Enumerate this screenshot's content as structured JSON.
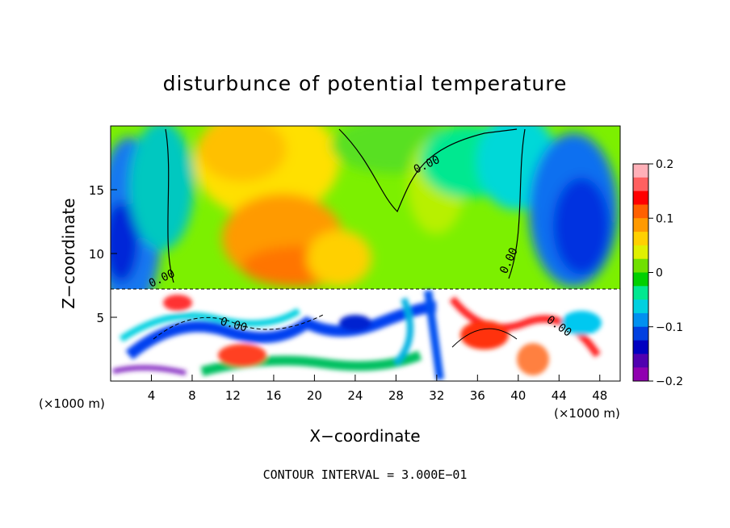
{
  "chart_data": {
    "type": "heatmap",
    "title": "disturbunce of potential temperature",
    "xlabel": "X−coordinate",
    "ylabel": "Z−coordinate",
    "x_unit": "(×1000 m)",
    "x_unit_right": "(×1000 m)",
    "xlim": [
      0,
      50
    ],
    "ylim": [
      0,
      20
    ],
    "x_ticks": [
      4,
      8,
      12,
      16,
      20,
      24,
      28,
      32,
      36,
      40,
      44,
      48
    ],
    "y_ticks": [
      5,
      10,
      15
    ],
    "colorbar": {
      "range": [
        -0.2,
        0.2
      ],
      "ticks": [
        "0.2",
        "0.1",
        "0",
        "−0.1",
        "−0.2"
      ],
      "tick_values": [
        0.2,
        0.1,
        0,
        -0.1,
        -0.2
      ]
    },
    "contour_label": "0.00",
    "contour_interval_text": "CONTOUR INTERVAL = 3.000E−01",
    "grid": false,
    "legend": "colorbar-right"
  }
}
